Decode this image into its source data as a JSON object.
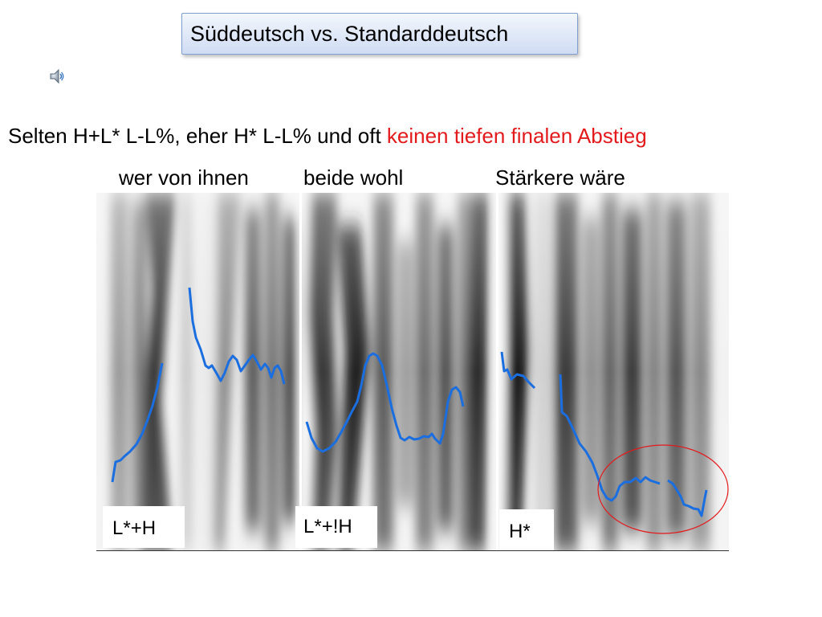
{
  "slide": {
    "title": "Süddeutsch vs. Standarddeutsch",
    "subtitle_black": "Selten H+L* L-L%, eher H* L-L% und oft ",
    "subtitle_red": "keinen tiefen finalen Abstieg",
    "words": [
      "wer von ihnen",
      "beide wohl",
      "Stärkere wäre"
    ],
    "tones": [
      "L*+H",
      "L*+!H",
      "H*"
    ]
  },
  "colors": {
    "pitch_track": "#1a6ee0",
    "highlight_circle": "#e31a1c",
    "subtitle_accent": "#e31a1c",
    "title_box_border": "#7f9fd0"
  },
  "icons": {
    "speaker": "speaker-icon"
  }
}
